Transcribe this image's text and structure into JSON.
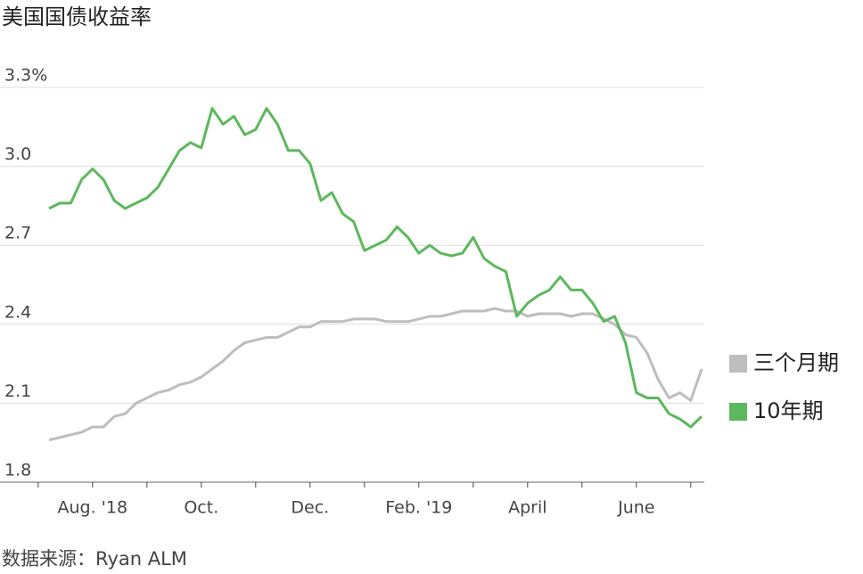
{
  "chart_data": {
    "type": "line",
    "title": "美国国债收益率",
    "source": "数据来源：Ryan ALM",
    "categories": [
      null,
      null,
      null,
      null,
      "Aug. '18",
      null,
      null,
      null,
      null,
      null,
      null,
      null,
      null,
      null,
      "Oct.",
      null,
      null,
      null,
      null,
      null,
      null,
      null,
      null,
      null,
      "Dec.",
      null,
      null,
      null,
      null,
      null,
      null,
      null,
      null,
      null,
      "Feb. '19",
      null,
      null,
      null,
      null,
      null,
      null,
      null,
      null,
      null,
      "April",
      null,
      null,
      null,
      null,
      null,
      null,
      null,
      null,
      null,
      "June",
      null,
      null,
      null,
      null,
      null,
      null
    ],
    "series": [
      {
        "name": "三个月期",
        "color": "#bdbdbd",
        "values": [
          1.96,
          1.97,
          1.98,
          1.99,
          2.01,
          2.01,
          2.05,
          2.06,
          2.1,
          2.12,
          2.14,
          2.15,
          2.17,
          2.18,
          2.2,
          2.23,
          2.26,
          2.3,
          2.33,
          2.34,
          2.35,
          2.35,
          2.37,
          2.39,
          2.39,
          2.41,
          2.41,
          2.41,
          2.42,
          2.42,
          2.42,
          2.41,
          2.41,
          2.41,
          2.42,
          2.43,
          2.43,
          2.44,
          2.45,
          2.45,
          2.45,
          2.46,
          2.45,
          2.45,
          2.43,
          2.44,
          2.44,
          2.44,
          2.43,
          2.44,
          2.44,
          2.42,
          2.4,
          2.36,
          2.35,
          2.29,
          2.19,
          2.12,
          2.14,
          2.11,
          2.23
        ]
      },
      {
        "name": "10年期",
        "color": "#5cb85c",
        "values": [
          2.84,
          2.86,
          2.86,
          2.95,
          2.99,
          2.95,
          2.87,
          2.84,
          2.86,
          2.88,
          2.92,
          2.99,
          3.06,
          3.09,
          3.07,
          3.22,
          3.16,
          3.19,
          3.12,
          3.14,
          3.22,
          3.16,
          3.06,
          3.06,
          3.01,
          2.87,
          2.9,
          2.82,
          2.79,
          2.68,
          2.7,
          2.72,
          2.77,
          2.73,
          2.67,
          2.7,
          2.67,
          2.66,
          2.67,
          2.73,
          2.65,
          2.62,
          2.6,
          2.43,
          2.48,
          2.51,
          2.53,
          2.58,
          2.53,
          2.53,
          2.48,
          2.41,
          2.43,
          2.33,
          2.14,
          2.12,
          2.12,
          2.06,
          2.04,
          2.01,
          2.05
        ]
      }
    ],
    "ylim": [
      1.8,
      3.3
    ],
    "yticks": [
      {
        "value": 3.3,
        "label": "3.3%"
      },
      {
        "value": 3,
        "label": "3.0"
      },
      2.7,
      2.4,
      2.1,
      1.8
    ],
    "grid": true,
    "legend": "right"
  }
}
